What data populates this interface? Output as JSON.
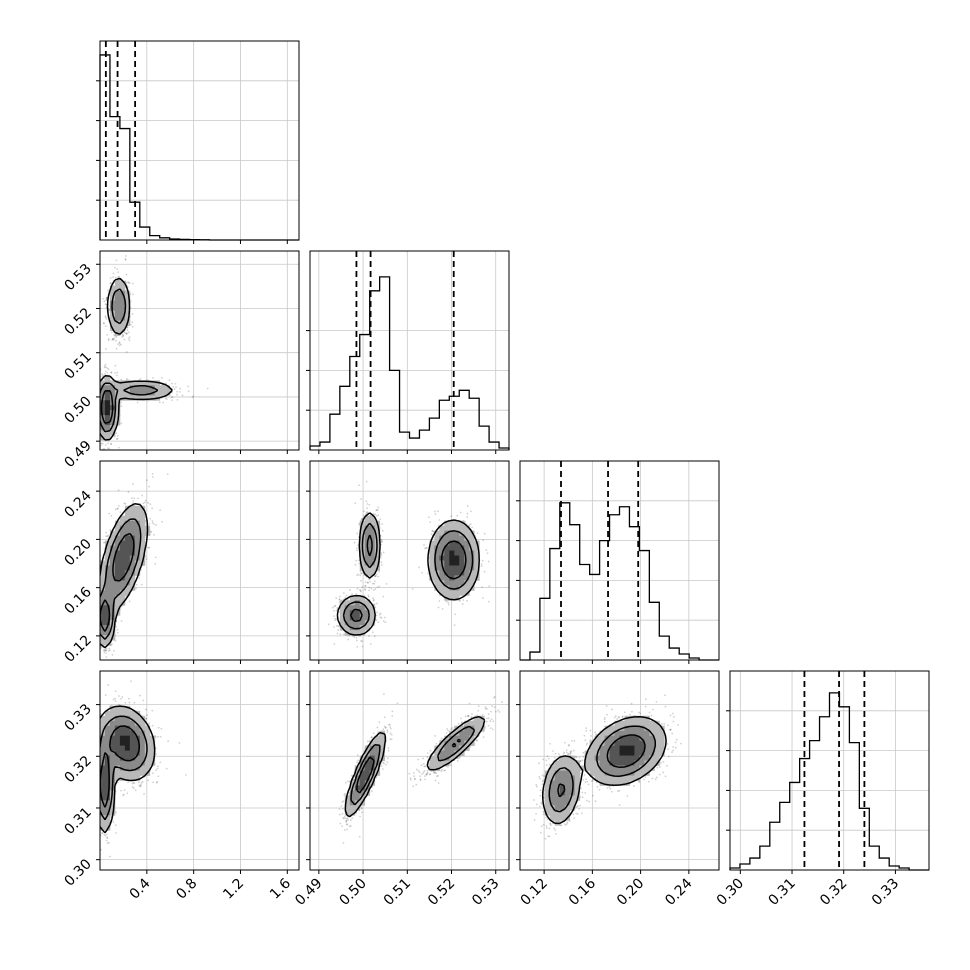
{
  "chart_data": {
    "type": "corner",
    "parameters": [
      {
        "id": "p0",
        "range": [
          0.0,
          1.7
        ],
        "ticks": [
          0.4,
          0.8,
          1.2,
          1.6
        ],
        "tick_labels": [
          "0.4",
          "0.8",
          "1.2",
          "1.6"
        ],
        "quantiles": [
          0.05,
          0.15,
          0.3
        ]
      },
      {
        "id": "p1",
        "range": [
          0.488,
          0.533
        ],
        "ticks": [
          0.49,
          0.5,
          0.51,
          0.52,
          0.53
        ],
        "tick_labels": [
          "0.49",
          "0.50",
          "0.51",
          "0.52",
          "0.53"
        ],
        "quantiles": [
          0.4985,
          0.5017,
          0.5205
        ]
      },
      {
        "id": "p2",
        "range": [
          0.1,
          0.265
        ],
        "ticks": [
          0.12,
          0.16,
          0.2,
          0.24
        ],
        "tick_labels": [
          "0.12",
          "0.16",
          "0.20",
          "0.24"
        ],
        "quantiles": [
          0.134,
          0.173,
          0.198
        ]
      },
      {
        "id": "p3",
        "range": [
          0.298,
          0.3365
        ],
        "ticks": [
          0.3,
          0.31,
          0.32,
          0.33
        ],
        "tick_labels": [
          "0.30",
          "0.31",
          "0.32",
          "0.33"
        ],
        "quantiles": [
          0.3124,
          0.3191,
          0.324
        ]
      }
    ],
    "histograms": [
      {
        "param": 0,
        "ymax": 1.0,
        "counts": [
          0.93,
          0.62,
          0.56,
          0.19,
          0.065,
          0.022,
          0.011,
          0.005,
          0.003,
          0.002,
          0.001,
          0,
          0,
          0,
          0,
          0,
          0,
          0,
          0,
          0
        ]
      },
      {
        "param": 1,
        "ymax": 1.0,
        "counts": [
          0.02,
          0.04,
          0.18,
          0.32,
          0.47,
          0.58,
          0.8,
          0.87,
          0.4,
          0.09,
          0.06,
          0.1,
          0.16,
          0.25,
          0.27,
          0.3,
          0.26,
          0.12,
          0.04,
          0.01
        ]
      },
      {
        "param": 2,
        "ymax": 1.0,
        "counts": [
          0.0,
          0.04,
          0.31,
          0.56,
          0.79,
          0.68,
          0.48,
          0.43,
          0.6,
          0.73,
          0.77,
          0.67,
          0.55,
          0.29,
          0.12,
          0.06,
          0.03,
          0.01,
          0.0,
          0.0
        ]
      },
      {
        "param": 3,
        "ymax": 1.0,
        "counts": [
          0.01,
          0.03,
          0.06,
          0.12,
          0.24,
          0.34,
          0.44,
          0.56,
          0.65,
          0.77,
          0.89,
          0.82,
          0.64,
          0.31,
          0.12,
          0.06,
          0.02,
          0.01,
          0.0,
          0.0
        ]
      }
    ],
    "pairs": [
      {
        "x": 0,
        "y": 1,
        "modes": [
          {
            "cx": 0.06,
            "cy": 0.4975,
            "sx": 0.045,
            "sy": 0.0035,
            "rho": 0.0,
            "w": 0.5
          },
          {
            "cx": 0.35,
            "cy": 0.5015,
            "sx": 0.16,
            "sy": 0.0012,
            "rho": 0.0,
            "w": 0.22
          },
          {
            "cx": 0.16,
            "cy": 0.5205,
            "sx": 0.05,
            "sy": 0.0035,
            "rho": 0.0,
            "w": 0.28
          }
        ]
      },
      {
        "x": 0,
        "y": 2,
        "modes": [
          {
            "cx": 0.04,
            "cy": 0.135,
            "sx": 0.04,
            "sy": 0.012,
            "rho": 0.0,
            "w": 0.5
          },
          {
            "cx": 0.2,
            "cy": 0.185,
            "sx": 0.1,
            "sy": 0.022,
            "rho": 0.55,
            "w": 0.5
          }
        ]
      },
      {
        "x": 0,
        "y": 3,
        "modes": [
          {
            "cx": 0.04,
            "cy": 0.3145,
            "sx": 0.04,
            "sy": 0.0045,
            "rho": 0.0,
            "w": 0.5
          },
          {
            "cx": 0.22,
            "cy": 0.3225,
            "sx": 0.12,
            "sy": 0.0035,
            "rho": -0.2,
            "w": 0.5
          }
        ]
      },
      {
        "x": 1,
        "y": 2,
        "modes": [
          {
            "cx": 0.4985,
            "cy": 0.137,
            "sx": 0.0022,
            "sy": 0.0085,
            "rho": 0.0,
            "w": 0.3
          },
          {
            "cx": 0.5015,
            "cy": 0.195,
            "sx": 0.0012,
            "sy": 0.014,
            "rho": 0.0,
            "w": 0.3
          },
          {
            "cx": 0.5205,
            "cy": 0.183,
            "sx": 0.0028,
            "sy": 0.016,
            "rho": 0.0,
            "w": 0.4
          }
        ]
      },
      {
        "x": 1,
        "y": 3,
        "modes": [
          {
            "cx": 0.5005,
            "cy": 0.3165,
            "sx": 0.0022,
            "sy": 0.004,
            "rho": 0.85,
            "w": 0.6
          },
          {
            "cx": 0.521,
            "cy": 0.3225,
            "sx": 0.0035,
            "sy": 0.0028,
            "rho": 0.85,
            "w": 0.4
          }
        ]
      },
      {
        "x": 2,
        "y": 3,
        "modes": [
          {
            "cx": 0.134,
            "cy": 0.3135,
            "sx": 0.008,
            "sy": 0.0035,
            "rho": 0.2,
            "w": 0.4
          },
          {
            "cx": 0.188,
            "cy": 0.321,
            "sx": 0.016,
            "sy": 0.0032,
            "rho": 0.3,
            "w": 0.6
          }
        ]
      }
    ]
  }
}
